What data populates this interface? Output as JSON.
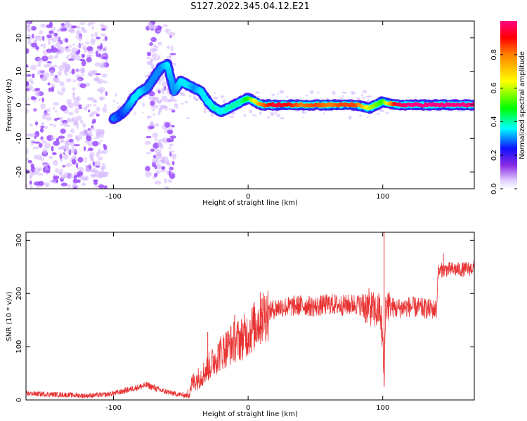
{
  "title": "S127.2022.345.04.12.E21",
  "colors": {
    "spectrogram_dots": "#9b4dff",
    "spectrogram_faint": "#d4b5ff",
    "snr_line": "#e83232",
    "axis": "#000000"
  },
  "chart_data": [
    {
      "type": "heatmap",
      "title": "S127.2022.345.04.12.E21",
      "xlabel": "Height of straight line (km)",
      "ylabel": "Frequency (Hz)",
      "xlim": [
        -165,
        168
      ],
      "ylim": [
        -25,
        25
      ],
      "xticks": [
        -100,
        0,
        100
      ],
      "yticks": [
        -20,
        -10,
        0,
        10,
        20
      ],
      "colorbar": {
        "label": "Normalized spectral amplitude",
        "range": [
          0.0,
          1.0
        ],
        "ticks": [
          0.0,
          0.2,
          0.4,
          0.6,
          0.8
        ],
        "colormap": "rainbow (white, purple, blue, cyan, green, yellow, orange, red, magenta)"
      },
      "ridge": {
        "x": [
          -100,
          -95,
          -90,
          -85,
          -80,
          -75,
          -70,
          -65,
          -60,
          -55,
          -50,
          -45,
          -40,
          -35,
          -30,
          -25,
          -20,
          -15,
          -10,
          -5,
          0,
          10,
          20,
          30,
          40,
          50,
          60,
          70,
          80,
          90,
          95,
          100,
          110,
          120,
          130,
          140,
          150,
          160,
          168
        ],
        "y": [
          -4,
          -3,
          -1,
          2,
          4,
          5,
          8,
          11,
          12,
          4,
          7,
          6,
          5,
          4,
          1,
          -1,
          -2,
          -1,
          0,
          1,
          2,
          0,
          0,
          0,
          0,
          0,
          0,
          0,
          0,
          -1,
          0,
          1,
          0,
          0,
          0,
          0,
          0,
          0,
          0
        ],
        "amplitude": [
          0.3,
          0.25,
          0.3,
          0.35,
          0.35,
          0.3,
          0.3,
          0.3,
          0.35,
          0.3,
          0.35,
          0.35,
          0.3,
          0.35,
          0.35,
          0.4,
          0.35,
          0.4,
          0.4,
          0.4,
          0.5,
          0.8,
          0.95,
          0.9,
          0.8,
          0.85,
          0.8,
          0.85,
          0.85,
          0.6,
          0.55,
          0.5,
          0.95,
          1.0,
          1.0,
          1.0,
          1.0,
          1.0,
          1.0
        ]
      },
      "noise_regions_km": [
        [
          -165,
          -105
        ],
        [
          -75,
          -55
        ]
      ]
    },
    {
      "type": "line",
      "xlabel": "Height of straight line (km)",
      "ylabel": "SNR (10 * v/v)",
      "xlim": [
        -165,
        168
      ],
      "ylim": [
        0,
        315
      ],
      "xticks": [
        -100,
        0,
        100
      ],
      "yticks": [
        0,
        100,
        200,
        300
      ],
      "series": [
        {
          "x": [
            -165,
            -140,
            -120,
            -105,
            -95,
            -85,
            -75,
            -65,
            -55,
            -45,
            -42,
            -40,
            -35,
            -30,
            -25,
            -20,
            -15,
            -10,
            -5,
            0,
            5,
            10,
            15,
            20,
            25,
            30,
            40,
            50,
            60,
            70,
            80,
            90,
            95,
            98,
            100,
            101,
            102,
            104,
            106,
            110,
            120,
            130,
            140,
            141,
            145,
            150,
            160,
            168
          ],
          "y": [
            12,
            10,
            8,
            10,
            15,
            22,
            28,
            18,
            12,
            8,
            30,
            35,
            45,
            60,
            75,
            90,
            100,
            110,
            115,
            125,
            140,
            155,
            165,
            172,
            175,
            175,
            178,
            175,
            180,
            178,
            180,
            175,
            165,
            170,
            110,
            30,
            175,
            180,
            175,
            172,
            175,
            172,
            170,
            240,
            245,
            245,
            245,
            248
          ],
          "peaks": [
            [
              -30,
              128
            ],
            [
              -10,
              160
            ],
            [
              10,
              190
            ],
            [
              101,
              315
            ],
            [
              101,
              25
            ],
            [
              145,
              275
            ]
          ]
        }
      ]
    }
  ]
}
